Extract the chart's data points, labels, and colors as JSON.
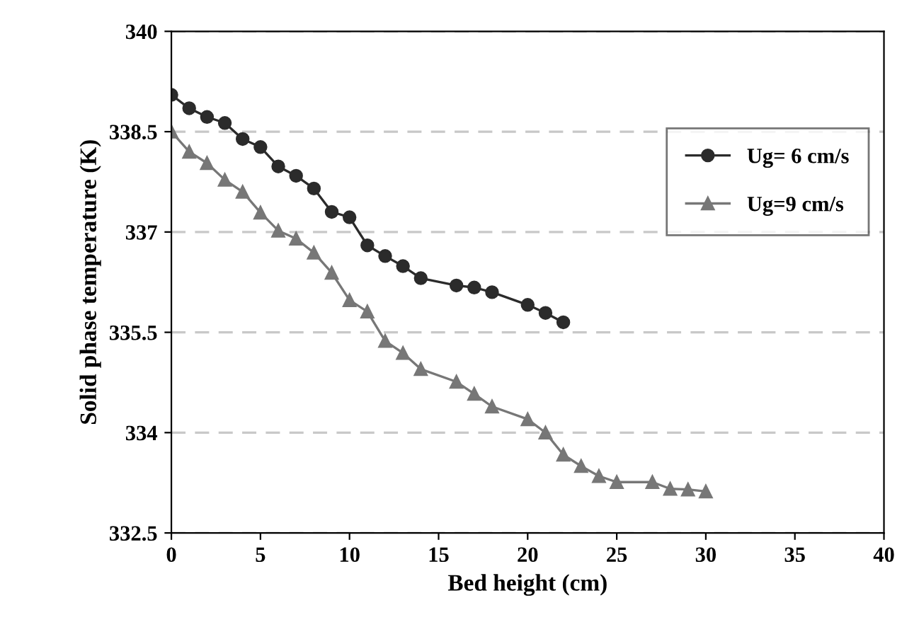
{
  "chart_data": {
    "type": "line",
    "xlabel": "Bed height (cm)",
    "ylabel": "Solid phase temperature (K)",
    "xlim": [
      0,
      40
    ],
    "xticks": [
      0,
      5,
      10,
      15,
      20,
      25,
      30,
      35,
      40
    ],
    "ylim": [
      332.5,
      340
    ],
    "yticks": [
      {
        "value": 332.5,
        "label": "332.5"
      },
      {
        "value": 334,
        "label": "334"
      },
      {
        "value": 335.5,
        "label": "335.5"
      },
      {
        "value": 337,
        "label": "337"
      },
      {
        "value": 338.5,
        "label": "338.5"
      },
      {
        "value": 340,
        "label": "340"
      }
    ],
    "grid": "y",
    "legend": "right",
    "line_style": "solid",
    "series": [
      {
        "name": "Ug= 6 cm/s",
        "color": "#2b2b2b",
        "marker": "circle",
        "x": [
          0,
          1,
          2,
          3,
          4,
          5,
          6,
          7,
          8,
          9,
          10,
          11,
          12,
          13,
          14,
          16,
          17,
          18,
          20,
          21,
          22
        ],
        "values": [
          339.05,
          338.85,
          338.72,
          338.63,
          338.39,
          338.27,
          337.98,
          337.84,
          337.65,
          337.3,
          337.22,
          336.8,
          336.64,
          336.49,
          336.31,
          336.2,
          336.17,
          336.1,
          335.91,
          335.79,
          335.65
        ]
      },
      {
        "name": "Ug=9 cm/s",
        "color": "#777777",
        "marker": "triangle",
        "x": [
          0,
          1,
          2,
          3,
          4,
          5,
          6,
          7,
          8,
          9,
          10,
          11,
          12,
          13,
          14,
          16,
          17,
          18,
          20,
          21,
          22,
          23,
          24,
          25,
          27,
          28,
          29,
          30
        ],
        "values": [
          338.5,
          338.2,
          338.03,
          337.78,
          337.6,
          337.29,
          337.02,
          336.9,
          336.69,
          336.39,
          335.98,
          335.81,
          335.37,
          335.19,
          334.95,
          334.76,
          334.58,
          334.39,
          334.2,
          334.0,
          333.67,
          333.5,
          333.35,
          333.26,
          333.26,
          333.16,
          333.15,
          333.12
        ]
      }
    ]
  }
}
